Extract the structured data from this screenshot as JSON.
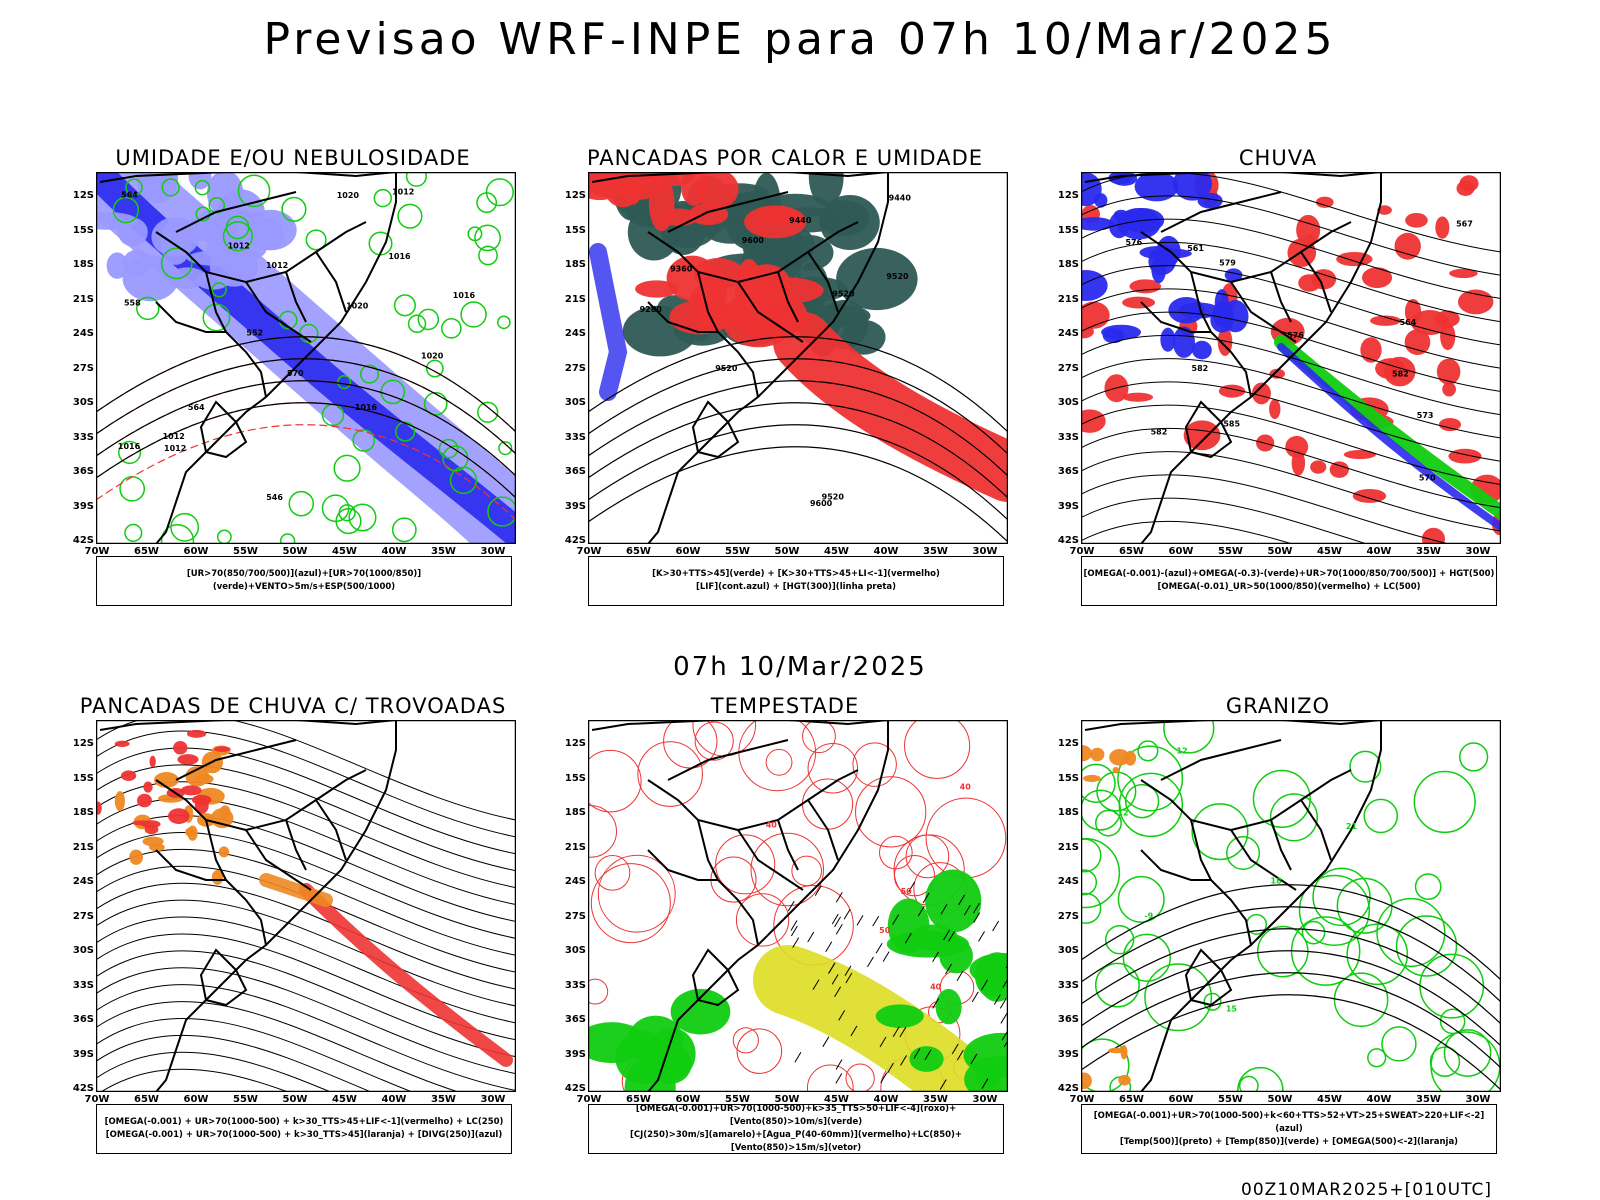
{
  "header": {
    "title": "Previsao WRF-INPE  para 07h 10/Mar/2025"
  },
  "subtitle": "07h 10/Mar/2025",
  "footer": "00Z10MAR2025+[010UTC]",
  "axes": {
    "lat": [
      "12S",
      "15S",
      "18S",
      "21S",
      "24S",
      "27S",
      "30S",
      "33S",
      "36S",
      "39S",
      "42S"
    ],
    "lon": [
      "70W",
      "65W",
      "60W",
      "55W",
      "50W",
      "45W",
      "40W",
      "35W",
      "30W"
    ]
  },
  "colors": {
    "blue": "#2a2aee",
    "lightblue": "#9999ff",
    "green": "#11cc11",
    "red": "#ee3333",
    "darkgreen": "#2e5a55",
    "orange": "#ee8822",
    "yellow": "#dddd22"
  },
  "panels": [
    {
      "title": "UMIDADE E/OU NEBULOSIDADE",
      "legend": [
        "[UR>70(850/700/500)](azul)+[UR>70(1000/850)](verde)+VENTO>5m/s+ESP(500/1000)"
      ],
      "labels": [
        "1012",
        "1016",
        "1016",
        "1012",
        "1012",
        "1016",
        "1020",
        "1020",
        "1012",
        "1016",
        "1020",
        "570",
        "564",
        "558",
        "552",
        "546",
        "564",
        "1012"
      ]
    },
    {
      "title": "PANCADAS POR CALOR E UMIDADE",
      "legend": [
        "[K>30+TTS>45](verde) + [K>30+TTS>45+LI<-1](vermelho)",
        "[LIF](cont.azul) + [HGT(300)](linha preta)"
      ],
      "labels": [
        "9600",
        "9520",
        "9520",
        "9600",
        "9520",
        "9440",
        "9360",
        "9280",
        "9440",
        "9520"
      ]
    },
    {
      "title": "CHUVA",
      "legend": [
        "[OMEGA(-0.001)-(azul)+OMEGA(-0.3)-(verde)+UR>70(1000/850/700/500)] + HGT(500)",
        "[OMEGA(-0.01)_UR>50(1000/850)(vermelho) + LC(500)"
      ],
      "labels": [
        "582",
        "582",
        "582",
        "576",
        "576",
        "573",
        "570",
        "567",
        "564",
        "561",
        "585",
        "579"
      ]
    },
    {
      "title": "PANCADAS DE CHUVA C/ TROVOADAS",
      "legend": [
        "[OMEGA(-0.001) + UR>70(1000-500) + k>30_TTS>45+LIF<-1](vermelho) + LC(250)",
        "[OMEGA(-0.001) + UR>70(1000-500) + k>30_TTS>45](laranja) + [DIVG(250)](azul)"
      ],
      "labels": []
    },
    {
      "title": "TEMPESTADE",
      "legend": [
        "[OMEGA(-0.001)+UR>70(1000-500)+k>35_TTS>50+LIF<-4](roxo)+[Vento(850)>10m/s](verde)",
        "[CJ(250)>30m/s](amarelo)+[Agua_P(40-60mm)](vermelho)+LC(850)+[Vento(850)>15m/s](vetor)"
      ],
      "labels": [
        "40",
        "50",
        "40",
        "50",
        "40"
      ]
    },
    {
      "title": "GRANIZO",
      "legend": [
        "[OMEGA(-0.001)+UR>70(1000-500)+k<60+TTS>52+VT>25+SWEAT>220+LIF<-2](azul)",
        "[Temp(500)](preto) + [Temp(850)](verde) + [OMEGA(500)<-2](laranja)"
      ],
      "labels": [
        "-9",
        "-12",
        "15",
        "18",
        "21",
        "12"
      ]
    }
  ]
}
